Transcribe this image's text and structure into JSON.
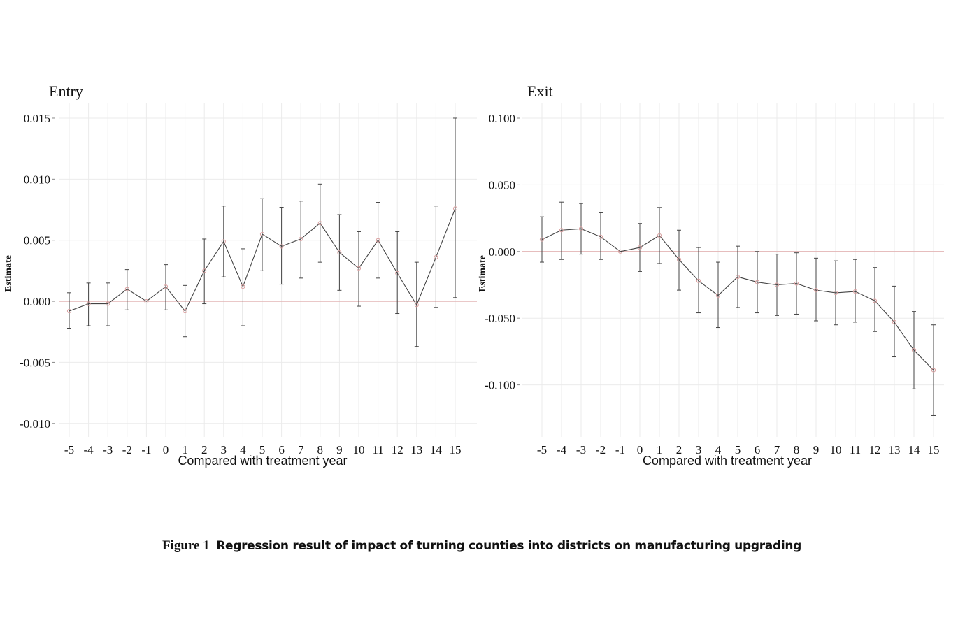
{
  "caption": {
    "figure_label": "Figure 1",
    "text": "Regression result of impact of turning counties into districts on manufacturing upgrading"
  },
  "colors": {
    "line": "#444444",
    "marker": "#d9a0a0",
    "zero_line": "#e3b5b5",
    "grid": "#ebebeb"
  },
  "chart_data": [
    {
      "type": "line",
      "title": "Entry",
      "xlabel": "Compared with treatment year",
      "ylabel": "Estimate",
      "x": [
        -5,
        -4,
        -3,
        -2,
        -1,
        0,
        1,
        2,
        3,
        4,
        5,
        6,
        7,
        8,
        9,
        10,
        11,
        12,
        13,
        14,
        15
      ],
      "y_ticks": [
        0.015,
        0.01,
        0.005,
        0.0,
        -0.005,
        -0.01
      ],
      "y_tick_labels": [
        "0.015",
        "0.010",
        "0.005",
        "0.000",
        "-0.005",
        "-0.010"
      ],
      "ylim": [
        -0.0111,
        0.0162
      ],
      "grid": true,
      "error_bars": true,
      "reference_line": 0,
      "values": [
        -0.0008,
        -0.0002,
        -0.0002,
        0.001,
        0.0,
        0.0012,
        -0.0008,
        0.0025,
        0.0049,
        0.0012,
        0.0055,
        0.0045,
        0.0051,
        0.0064,
        0.004,
        0.0027,
        0.005,
        0.0023,
        -0.0003,
        0.0036,
        0.0076
      ],
      "upper": [
        0.0007,
        0.0015,
        0.0015,
        0.0026,
        null,
        0.003,
        0.0013,
        0.0051,
        0.0078,
        0.0043,
        0.0084,
        0.0077,
        0.0082,
        0.0096,
        0.0071,
        0.0057,
        0.0081,
        0.0057,
        0.0032,
        0.0078,
        0.015
      ],
      "lower": [
        -0.0022,
        -0.002,
        -0.002,
        -0.0007,
        null,
        -0.0007,
        -0.0029,
        -0.0002,
        0.002,
        -0.002,
        0.0025,
        0.0014,
        0.0019,
        0.0032,
        0.0009,
        -0.0004,
        0.0019,
        -0.001,
        -0.0037,
        -0.0005,
        0.0003
      ]
    },
    {
      "type": "line",
      "title": "Exit",
      "xlabel": "Compared with treatment year",
      "ylabel": "Estimate",
      "x": [
        -5,
        -4,
        -3,
        -2,
        -1,
        0,
        1,
        2,
        3,
        4,
        5,
        6,
        7,
        8,
        9,
        10,
        11,
        12,
        13,
        14,
        15
      ],
      "y_ticks": [
        0.1,
        0.05,
        0.0,
        -0.05,
        -0.1
      ],
      "y_tick_labels": [
        "0.100",
        "0.050",
        "0.000",
        "-0.050",
        "-0.100"
      ],
      "ylim": [
        -0.139,
        0.111
      ],
      "grid": true,
      "error_bars": true,
      "reference_line": 0,
      "values": [
        0.009,
        0.016,
        0.017,
        0.011,
        0.0,
        0.003,
        0.012,
        -0.006,
        -0.022,
        -0.033,
        -0.019,
        -0.023,
        -0.025,
        -0.024,
        -0.029,
        -0.031,
        -0.03,
        -0.037,
        -0.053,
        -0.074,
        -0.089
      ],
      "upper": [
        0.026,
        0.037,
        0.036,
        0.029,
        null,
        0.021,
        0.033,
        0.016,
        0.003,
        -0.008,
        0.004,
        0.0,
        -0.002,
        -0.001,
        -0.005,
        -0.007,
        -0.006,
        -0.012,
        -0.026,
        -0.045,
        -0.055
      ],
      "lower": [
        -0.008,
        -0.006,
        -0.002,
        -0.006,
        null,
        -0.015,
        -0.009,
        -0.029,
        -0.046,
        -0.057,
        -0.042,
        -0.046,
        -0.048,
        -0.047,
        -0.052,
        -0.055,
        -0.053,
        -0.06,
        -0.079,
        -0.103,
        -0.123
      ]
    }
  ]
}
